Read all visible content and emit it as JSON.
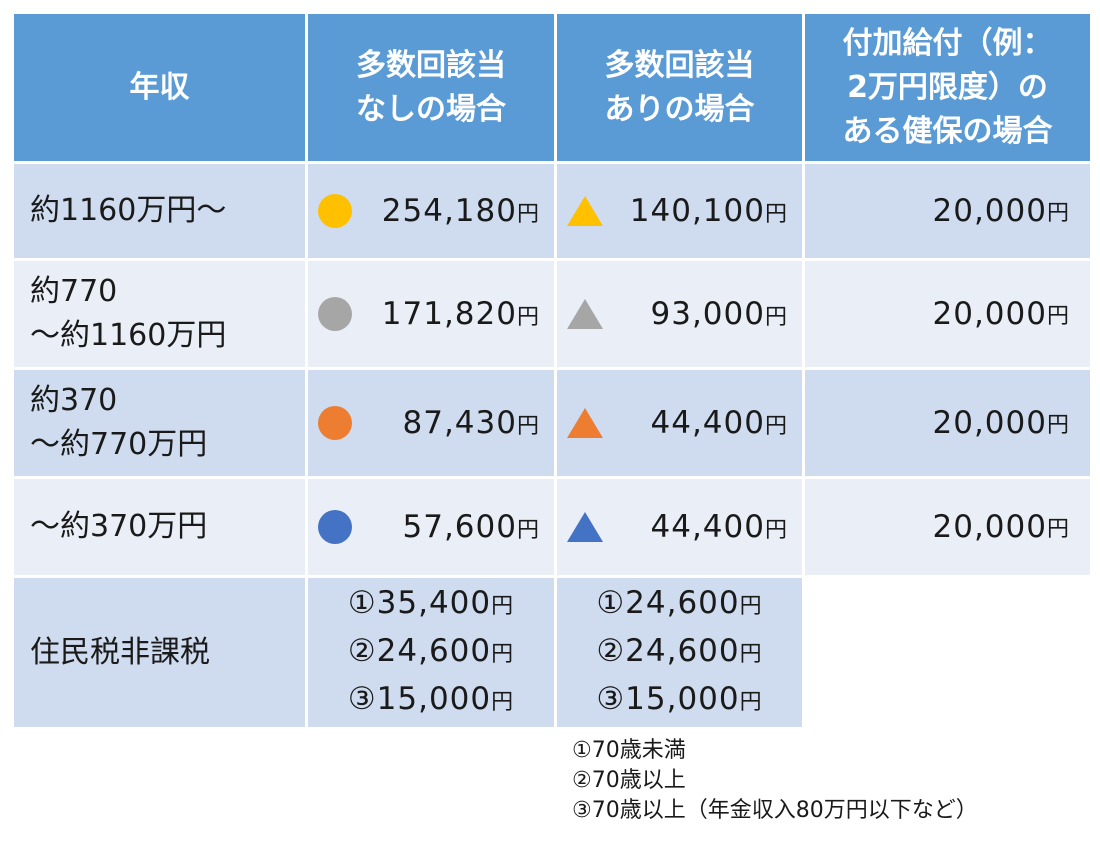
{
  "header": {
    "col1": "年収",
    "col2": "多数回該当\nなしの場合",
    "col3": "多数回該当\nありの場合",
    "col4": "付加給付（例：\n2万円限度）の\nある健保の場合"
  },
  "rows": [
    {
      "label": "約1160万円〜",
      "no_multi": "254,180",
      "multi": "140,100",
      "extra": "20,000",
      "color": "#ffc000"
    },
    {
      "label": "約770\n〜約1160万円",
      "no_multi": "171,820",
      "multi": "93,000",
      "extra": "20,000",
      "color": "#a6a6a6"
    },
    {
      "label": "約370\n〜約770万円",
      "no_multi": "87,430",
      "multi": "44,400",
      "extra": "20,000",
      "color": "#ed7d31"
    },
    {
      "label": "〜約370万円",
      "no_multi": "57,600",
      "multi": "44,400",
      "extra": "20,000",
      "color": "#4472c4"
    }
  ],
  "yen": "円",
  "tax_exempt": {
    "label": "住民税非課税",
    "no_multi": [
      "①35,400",
      "②24,600",
      "③15,000"
    ],
    "multi": [
      "①24,600",
      "②24,600",
      "③15,000"
    ]
  },
  "notes": [
    "①70歳未満",
    "②70歳以上",
    "③70歳以上（年金収入80万円以下など）"
  ]
}
